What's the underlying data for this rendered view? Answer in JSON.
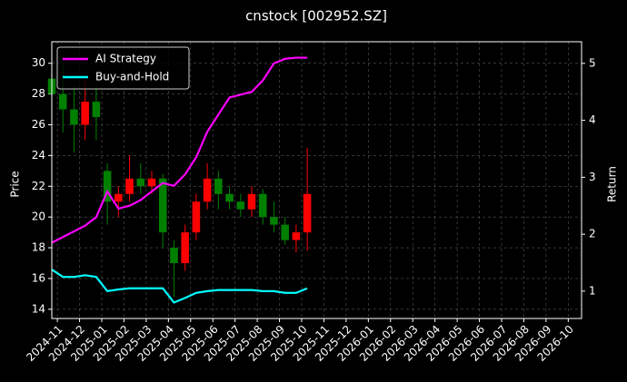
{
  "chart_data": {
    "type": "candlestick",
    "title": "cnstock [002952.SZ]",
    "y_label": "Price",
    "y2_label": "Return",
    "x": [
      -0.25,
      0.25,
      0.75,
      1.25,
      1.75,
      2.25,
      2.75,
      3.25,
      3.75,
      4.25,
      4.75,
      5.25,
      5.75,
      6.25,
      6.75,
      7.25,
      7.75,
      8.25,
      8.75,
      9.25,
      9.75,
      10.25,
      10.75,
      11.25
    ],
    "open": [
      29,
      28,
      27,
      26,
      27.5,
      23,
      21,
      21.5,
      22.5,
      22,
      22.5,
      18,
      17,
      19,
      21,
      22.5,
      21.5,
      21,
      20.5,
      21.5,
      20,
      19.5,
      18.5,
      19
    ],
    "high": [
      30.5,
      30,
      28.5,
      29,
      28.5,
      23.5,
      22,
      24,
      23.5,
      23,
      22.8,
      18.5,
      19.5,
      21.5,
      23.5,
      23,
      22,
      21.5,
      22,
      21.8,
      21,
      20,
      19.5,
      24.5
    ],
    "low": [
      26,
      25.5,
      24.2,
      25,
      25,
      19.5,
      20,
      21,
      21.5,
      21.5,
      18,
      14.8,
      16.5,
      18.5,
      20.5,
      20.5,
      20.5,
      20,
      20,
      19.5,
      19,
      18.2,
      17.7,
      17.8
    ],
    "close": [
      28,
      27,
      26,
      27.5,
      26.5,
      21,
      21.5,
      22.5,
      22,
      22.5,
      19,
      17,
      19,
      21,
      22.5,
      21.5,
      21,
      20.5,
      21.5,
      20,
      19.5,
      18.5,
      19,
      21.5
    ],
    "up_color": "#ff0000",
    "down_color": "#008000",
    "series": [
      {
        "name": "AI Strategy",
        "color": "#ff00ff",
        "axis": "y2",
        "values": [
          1.85,
          1.95,
          2.05,
          2.15,
          2.3,
          2.75,
          2.45,
          2.5,
          2.6,
          2.75,
          2.9,
          2.85,
          3.05,
          3.35,
          3.8,
          4.1,
          4.4,
          4.45,
          4.5,
          4.7,
          5.0,
          5.08,
          5.1,
          5.1
        ]
      },
      {
        "name": "Buy-and-Hold",
        "color": "#00ffff",
        "axis": "y2",
        "values": [
          1.38,
          1.25,
          1.25,
          1.28,
          1.25,
          1.0,
          1.03,
          1.05,
          1.05,
          1.05,
          1.05,
          0.8,
          0.88,
          0.97,
          1.0,
          1.02,
          1.02,
          1.02,
          1.02,
          1.0,
          1.0,
          0.97,
          0.97,
          1.05
        ]
      }
    ],
    "xlim": [
      -0.25,
      23.6
    ],
    "xticks": [
      {
        "value": 0,
        "label": "2024-11"
      },
      {
        "value": 1,
        "label": "2024-12"
      },
      {
        "value": 2,
        "label": "2025-01"
      },
      {
        "value": 3,
        "label": "2025-02"
      },
      {
        "value": 4,
        "label": "2025-03"
      },
      {
        "value": 5,
        "label": "2025-04"
      },
      {
        "value": 6,
        "label": "2025-05"
      },
      {
        "value": 7,
        "label": "2025-06"
      },
      {
        "value": 8,
        "label": "2025-07"
      },
      {
        "value": 9,
        "label": "2025-08"
      },
      {
        "value": 10,
        "label": "2025-09"
      },
      {
        "value": 11,
        "label": "2025-10"
      },
      {
        "value": 12,
        "label": "2025-11"
      },
      {
        "value": 13,
        "label": "2025-12"
      },
      {
        "value": 14,
        "label": "2026-01"
      },
      {
        "value": 15,
        "label": "2026-02"
      },
      {
        "value": 16,
        "label": "2026-03"
      },
      {
        "value": 17,
        "label": "2026-04"
      },
      {
        "value": 18,
        "label": "2026-05"
      },
      {
        "value": 19,
        "label": "2026-06"
      },
      {
        "value": 20,
        "label": "2026-07"
      },
      {
        "value": 21,
        "label": "2026-08"
      },
      {
        "value": 22,
        "label": "2026-09"
      },
      {
        "value": 23,
        "label": "2026-10"
      }
    ],
    "ylim": [
      13.4,
      31.4
    ],
    "yticks": [
      14,
      16,
      18,
      20,
      22,
      24,
      26,
      28,
      30
    ],
    "y2lim": [
      0.52,
      5.38
    ],
    "y2ticks": [
      1,
      2,
      3,
      4,
      5
    ],
    "grid": true,
    "legend": "upper left"
  }
}
